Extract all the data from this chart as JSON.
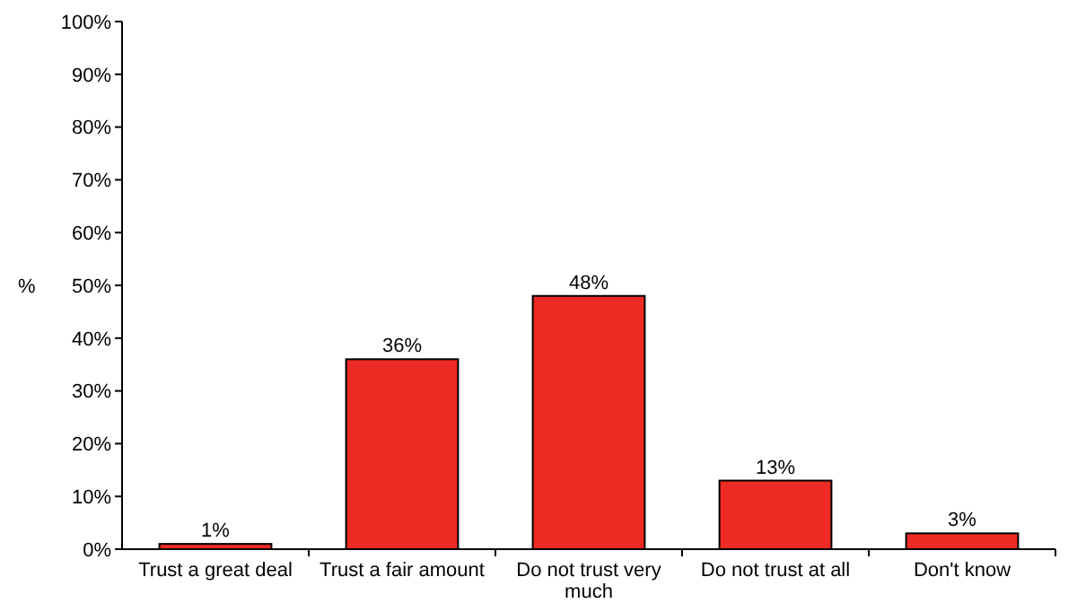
{
  "chart_data": {
    "type": "bar",
    "ylabel": "%",
    "categories": [
      "Trust a great deal",
      "Trust a fair amount",
      "Do not trust very much",
      "Do not trust at all",
      "Don't know"
    ],
    "values": [
      1,
      36,
      48,
      13,
      3
    ],
    "value_labels": [
      "1%",
      "36%",
      "48%",
      "13%",
      "3%"
    ],
    "color": "#ee2a24",
    "ylim": [
      0,
      100
    ],
    "yticks": [
      {
        "value": 0,
        "label": "0%"
      },
      {
        "value": 10,
        "label": "10%"
      },
      {
        "value": 20,
        "label": "20%"
      },
      {
        "value": 30,
        "label": "30%"
      },
      {
        "value": 40,
        "label": "40%"
      },
      {
        "value": 50,
        "label": "50%"
      },
      {
        "value": 60,
        "label": "60%"
      },
      {
        "value": 70,
        "label": "70%"
      },
      {
        "value": 80,
        "label": "80%"
      },
      {
        "value": 90,
        "label": "90%"
      },
      {
        "value": 100,
        "label": "100%"
      }
    ],
    "grid": false
  }
}
